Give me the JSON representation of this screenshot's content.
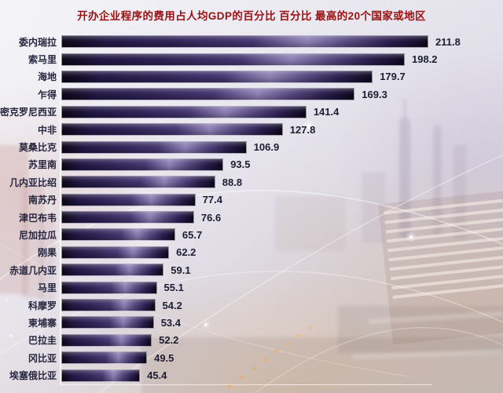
{
  "chart_data": {
    "type": "bar",
    "orientation": "horizontal",
    "title": "开办企业程序的费用占人均GDP的百分比 百分比 最高的20个国家或地区",
    "categories": [
      "委内瑞拉",
      "索马里",
      "海地",
      "乍得",
      "密克罗尼西亚",
      "中非",
      "莫桑比克",
      "苏里南",
      "几内亚比绍",
      "南苏丹",
      "津巴布韦",
      "尼加拉瓜",
      "刚果",
      "赤道几内亚",
      "马里",
      "科摩罗",
      "柬埔寨",
      "巴拉圭",
      "冈比亚",
      "埃塞俄比亚"
    ],
    "values": [
      211.8,
      198.2,
      179.7,
      169.3,
      141.4,
      127.8,
      106.9,
      93.5,
      88.8,
      77.4,
      76.6,
      65.7,
      62.2,
      59.1,
      55.1,
      54.2,
      53.4,
      52.2,
      49.5,
      45.4
    ],
    "xlim": [
      0,
      220
    ],
    "grid": false,
    "legend_position": "none",
    "value_labels_shown": true
  },
  "colors": {
    "title_text": "#9a1010",
    "category_text": "#26263f",
    "value_text": "#1d1d33",
    "bar_gradient_dark": "#0d0819",
    "bar_gradient_mid": "#453670",
    "bar_gradient_highlight": "#8d81b4",
    "bar_border": "#f2f0f8",
    "axis_line": "#fcfcff",
    "background_tint": "#dcdbe6",
    "background_warm_glow": "#e0ba8e"
  }
}
